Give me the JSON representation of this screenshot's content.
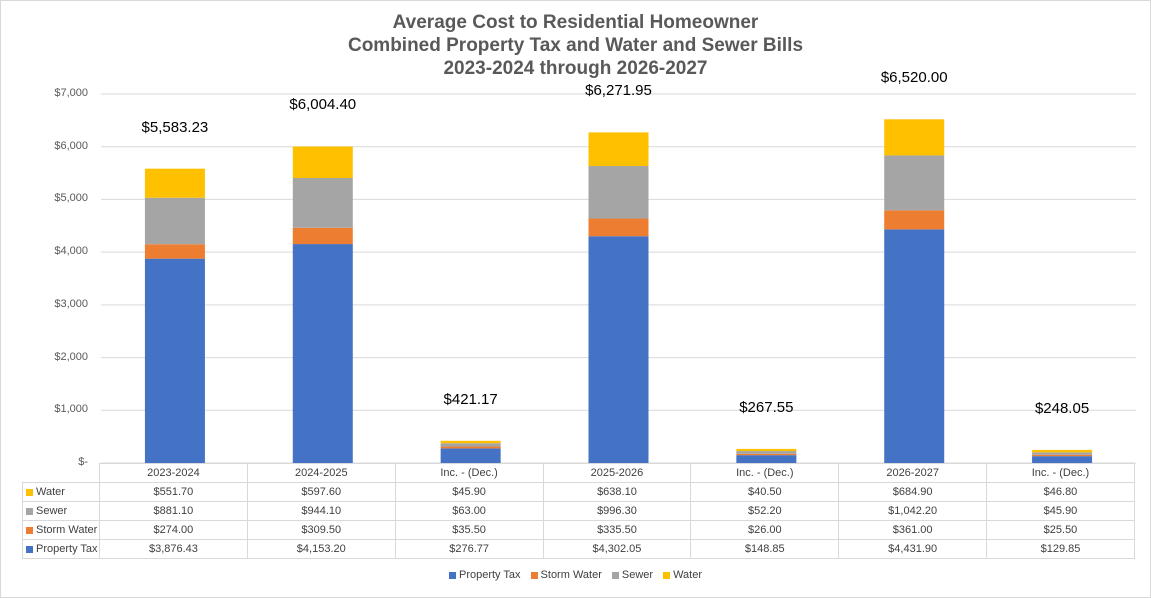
{
  "chart_data": {
    "type": "stacked-bar",
    "title": [
      "Average Cost to Residential Homeowner",
      "Combined Property Tax and Water and Sewer Bills",
      "2023-2024 through 2026-2027"
    ],
    "categories": [
      "2023-2024",
      "2024-2025",
      "Inc. - (Dec.)",
      "2025-2026",
      "Inc. - (Dec.)",
      "2026-2027",
      "Inc. - (Dec.)"
    ],
    "ylim": [
      0,
      7000
    ],
    "yticks": [
      {
        "value": 0,
        "label": "$-"
      },
      {
        "value": 1000,
        "label": "$1,000"
      },
      {
        "value": 2000,
        "label": "$2,000"
      },
      {
        "value": 3000,
        "label": "$3,000"
      },
      {
        "value": 4000,
        "label": "$4,000"
      },
      {
        "value": 5000,
        "label": "$5,000"
      },
      {
        "value": 6000,
        "label": "$6,000"
      },
      {
        "value": 7000,
        "label": "$7,000"
      }
    ],
    "series": [
      {
        "name": "Property Tax",
        "color": "#4472c4",
        "values": [
          3876.43,
          4153.2,
          276.77,
          4302.05,
          148.85,
          4431.9,
          129.85
        ],
        "labels": [
          "$3,876.43",
          "$4,153.20",
          "$276.77",
          "$4,302.05",
          "$148.85",
          "$4,431.90",
          "$129.85"
        ]
      },
      {
        "name": "Storm Water",
        "color": "#ed7d31",
        "values": [
          274.0,
          309.5,
          35.5,
          335.5,
          26.0,
          361.0,
          25.5
        ],
        "labels": [
          "$274.00",
          "$309.50",
          "$35.50",
          "$335.50",
          "$26.00",
          "$361.00",
          "$25.50"
        ]
      },
      {
        "name": "Sewer",
        "color": "#a5a5a5",
        "values": [
          881.1,
          944.1,
          63.0,
          996.3,
          52.2,
          1042.2,
          45.9
        ],
        "labels": [
          "$881.10",
          "$944.10",
          "$63.00",
          "$996.30",
          "$52.20",
          "$1,042.20",
          "$45.90"
        ]
      },
      {
        "name": "Water",
        "color": "#ffc000",
        "values": [
          551.7,
          597.6,
          45.9,
          638.1,
          40.5,
          684.9,
          46.8
        ],
        "labels": [
          "$551.70",
          "$597.60",
          "$45.90",
          "$638.10",
          "$40.50",
          "$684.90",
          "$46.80"
        ]
      }
    ],
    "totals": [
      "$5,583.23",
      "$6,004.40",
      "$421.17",
      "$6,271.95",
      "$267.55",
      "$6,520.00",
      "$248.05"
    ],
    "table_row_order": [
      "Water",
      "Sewer",
      "Storm Water",
      "Property Tax"
    ],
    "legend": [
      "Property Tax",
      "Storm Water",
      "Sewer",
      "Water"
    ],
    "legend_position": "bottom"
  }
}
